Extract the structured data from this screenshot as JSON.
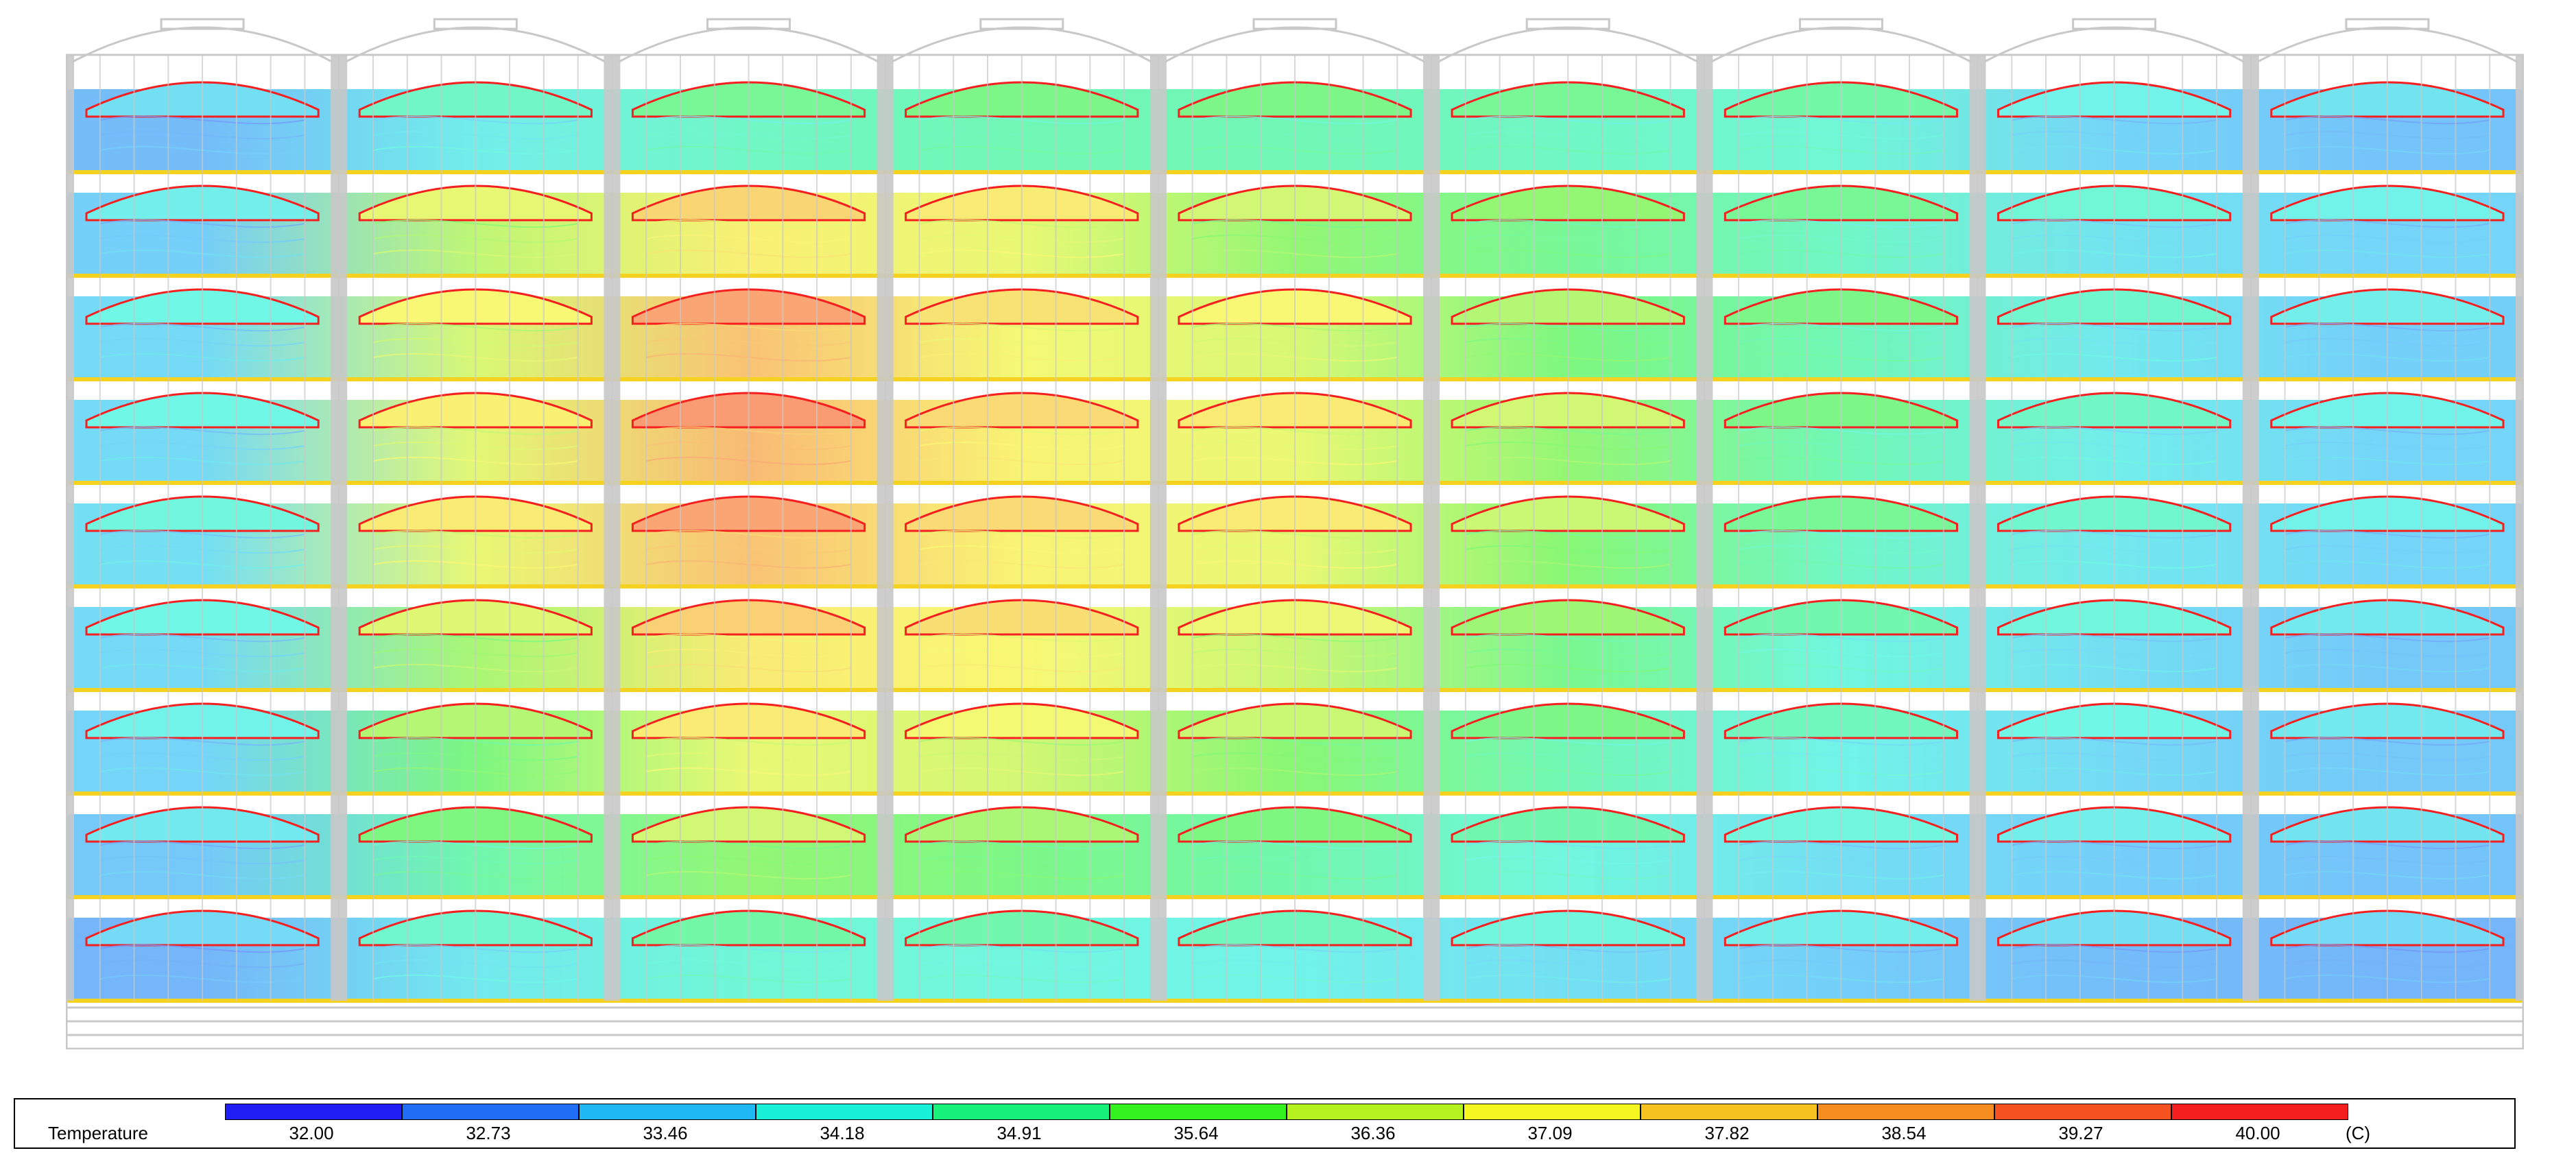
{
  "legend": {
    "title": "Temperature",
    "unit": "(C)",
    "ticks": [
      "32.00",
      "32.73",
      "33.46",
      "34.18",
      "34.91",
      "35.64",
      "36.36",
      "37.09",
      "37.82",
      "38.54",
      "39.27",
      "40.00"
    ],
    "colors": [
      "#1f1ff5",
      "#1f6ef5",
      "#1fb8f5",
      "#19f2d8",
      "#19f27a",
      "#33f21f",
      "#b4f21f",
      "#f5f51f",
      "#f5c21f",
      "#f58c1f",
      "#f5521f",
      "#f51f1f"
    ]
  },
  "field": {
    "layer_count": 9,
    "column_count": 9,
    "layer_means": [
      [
        33.1,
        34.0,
        34.6,
        34.8,
        34.8,
        34.6,
        34.4,
        33.5,
        33.2
      ],
      [
        33.4,
        36.2,
        37.3,
        36.8,
        35.8,
        35.2,
        34.6,
        33.8,
        33.5
      ],
      [
        33.6,
        36.5,
        38.3,
        37.0,
        36.5,
        35.5,
        34.8,
        33.9,
        33.4
      ],
      [
        33.6,
        36.7,
        38.5,
        37.2,
        36.8,
        35.8,
        34.8,
        34.0,
        33.5
      ],
      [
        33.7,
        36.8,
        38.3,
        37.2,
        36.8,
        35.7,
        34.6,
        33.9,
        33.5
      ],
      [
        33.6,
        36.0,
        37.4,
        37.1,
        36.3,
        35.3,
        34.3,
        33.7,
        33.3
      ],
      [
        33.5,
        35.5,
        36.8,
        36.4,
        35.7,
        34.8,
        34.1,
        33.6,
        33.3
      ],
      [
        33.3,
        34.9,
        35.8,
        35.4,
        34.9,
        34.3,
        33.7,
        33.4,
        33.2
      ],
      [
        33.0,
        33.9,
        34.4,
        34.3,
        34.1,
        33.7,
        33.4,
        33.1,
        33.0
      ]
    ]
  }
}
